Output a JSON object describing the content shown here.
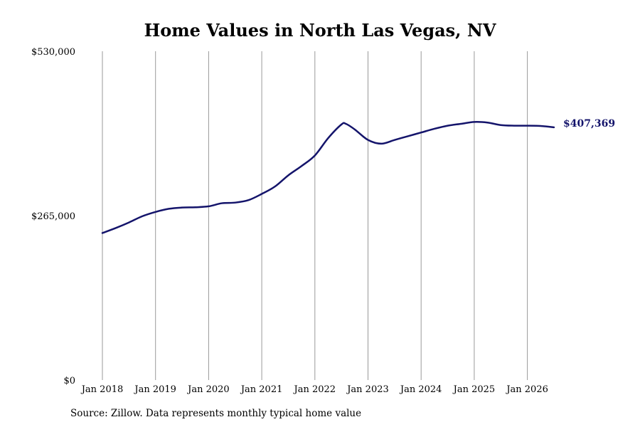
{
  "chart_data": {
    "type": "line",
    "title": "Home Values in North Las Vegas, NV",
    "source": "Source: Zillow. Data represents monthly typical home value",
    "xlabel": "",
    "ylabel": "",
    "ylim": [
      0,
      530000
    ],
    "y_ticks": [
      {
        "value": 0,
        "label": "$0"
      },
      {
        "value": 265000,
        "label": "$265,000"
      },
      {
        "value": 530000,
        "label": "$530,000"
      }
    ],
    "x_ticks": [
      {
        "value": "2018-01",
        "label": "Jan 2018"
      },
      {
        "value": "2019-01",
        "label": "Jan 2019"
      },
      {
        "value": "2020-01",
        "label": "Jan 2020"
      },
      {
        "value": "2021-01",
        "label": "Jan 2021"
      },
      {
        "value": "2022-01",
        "label": "Jan 2022"
      },
      {
        "value": "2023-01",
        "label": "Jan 2023"
      },
      {
        "value": "2024-01",
        "label": "Jan 2024"
      },
      {
        "value": "2025-01",
        "label": "Jan 2025"
      },
      {
        "value": "2026-01",
        "label": "Jan 2026"
      }
    ],
    "grid": {
      "vertical": true,
      "horizontal": false
    },
    "line_color": "#14146b",
    "grid_color": "#999999",
    "end_label": "$407,369",
    "series": [
      {
        "x": [
          "2018-01",
          "2018-04",
          "2018-07",
          "2018-10",
          "2019-01",
          "2019-04",
          "2019-07",
          "2019-10",
          "2020-01",
          "2020-04",
          "2020-07",
          "2020-10",
          "2021-01",
          "2021-04",
          "2021-07",
          "2021-10",
          "2022-01",
          "2022-04",
          "2022-07",
          "2022-08",
          "2022-10",
          "2023-01",
          "2023-04",
          "2023-07",
          "2023-10",
          "2024-01",
          "2024-04",
          "2024-07",
          "2024-10",
          "2025-01",
          "2025-04",
          "2025-07",
          "2025-10",
          "2026-01",
          "2026-04",
          "2026-07"
        ],
        "y": [
          237000,
          245000,
          254000,
          264000,
          271000,
          276000,
          278000,
          278500,
          280000,
          285000,
          286000,
          290000,
          300000,
          312000,
          330000,
          345000,
          362000,
          390000,
          412000,
          413000,
          404000,
          387000,
          381000,
          387000,
          393000,
          399000,
          405000,
          410000,
          413000,
          416000,
          415000,
          411000,
          410000,
          410000,
          409500,
          407369
        ]
      }
    ]
  }
}
